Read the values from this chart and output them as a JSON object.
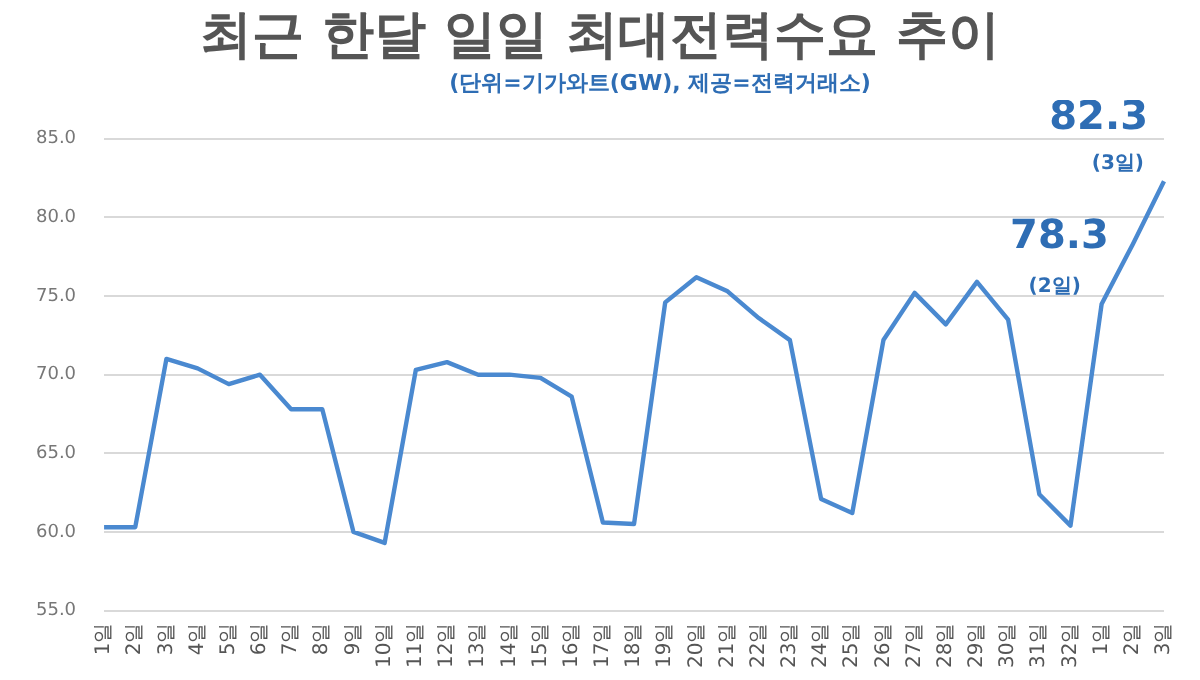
{
  "chart_data": {
    "type": "line",
    "title": "최근 한달 일일 최대전력수요 추이",
    "subtitle": "(단위=기가와트(GW), 제공=전력거래소)",
    "categories": [
      "1일",
      "2일",
      "3일",
      "4일",
      "5일",
      "6일",
      "7일",
      "8일",
      "9일",
      "10일",
      "11일",
      "12일",
      "13일",
      "14일",
      "15일",
      "16일",
      "17일",
      "18일",
      "19일",
      "20일",
      "21일",
      "22일",
      "23일",
      "24일",
      "25일",
      "26일",
      "27일",
      "28일",
      "29일",
      "30일",
      "31일",
      "32일",
      "1일",
      "2일",
      "3일"
    ],
    "series": [
      {
        "color": "#4a89d0",
        "values": [
          60.3,
          60.3,
          71.0,
          70.4,
          69.4,
          70.0,
          67.8,
          67.8,
          60.0,
          59.3,
          70.3,
          70.8,
          70.0,
          70.0,
          69.8,
          68.6,
          60.6,
          60.5,
          74.6,
          76.2,
          75.3,
          73.6,
          72.2,
          62.1,
          61.2,
          72.2,
          75.2,
          73.2,
          75.9,
          73.5,
          62.4,
          60.4,
          74.5,
          78.3,
          82.3
        ]
      }
    ],
    "ylim": [
      55,
      85
    ],
    "yticks": [
      {
        "value": 55,
        "label": "55.0"
      },
      {
        "value": 60,
        "label": "60.0"
      },
      {
        "value": 65,
        "label": "65.0"
      },
      {
        "value": 70,
        "label": "70.0"
      },
      {
        "value": 75,
        "label": "75.0"
      },
      {
        "value": 80,
        "label": "80.0"
      },
      {
        "value": 85,
        "label": "85.0"
      }
    ],
    "grid": "y",
    "legend": false,
    "marker": "none",
    "line_style": "solid",
    "annotations": [
      "78.3",
      "(2일)",
      "82.3",
      "(3일)"
    ]
  }
}
